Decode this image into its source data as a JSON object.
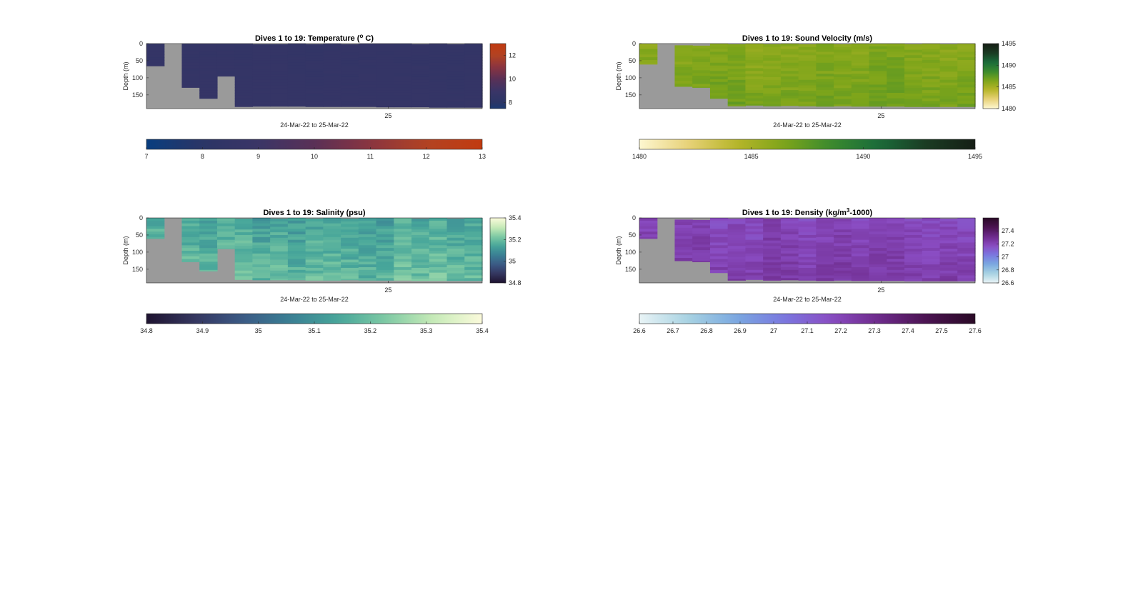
{
  "chart_data": [
    {
      "type": "heatmap",
      "title": "Dives 1 to 19: Temperature (",
      "title_sup": "o",
      "title_tail": " C)",
      "xlabel": "24-Mar-22 to 25-Mar-22",
      "ylabel": "Depth (m)",
      "xtick_labels": [
        "25"
      ],
      "ylim": [
        0,
        190
      ],
      "yticks": [
        0,
        50,
        100,
        150
      ],
      "dives": 19,
      "dive_max_depth": [
        65,
        0,
        128,
        160,
        95,
        184,
        183,
        183,
        183,
        184,
        184,
        184,
        184,
        185,
        185,
        185,
        186,
        186,
        186
      ],
      "dive_first_depth": [
        0,
        0,
        0,
        0,
        0,
        0,
        2,
        2,
        0,
        2,
        0,
        2,
        0,
        0,
        0,
        2,
        0,
        2,
        0
      ],
      "color_range": [
        7,
        13
      ],
      "base_value": 8.6,
      "noise": 0.05,
      "no_data_color": "#9a9a9a",
      "colormap": [
        "#083d7f",
        "#2b3565",
        "#3a3567",
        "#5a3056",
        "#8a3440",
        "#b24322",
        "#c13a10"
      ],
      "colorbar_right": {
        "ticks": [
          8,
          10,
          12
        ],
        "range": [
          7.5,
          13
        ]
      },
      "colorbar_bottom": {
        "ticks": [
          7,
          8,
          9,
          10,
          11,
          12,
          13
        ]
      }
    },
    {
      "type": "heatmap",
      "title": "Dives 1 to 19: Sound Velocity (m/s)",
      "xlabel": "24-Mar-22 to 25-Mar-22",
      "ylabel": "Depth (m)",
      "xtick_labels": [
        "25"
      ],
      "ylim": [
        0,
        190
      ],
      "yticks": [
        0,
        50,
        100,
        150
      ],
      "dives": 19,
      "dive_max_depth": [
        60,
        0,
        125,
        128,
        160,
        182,
        180,
        182,
        181,
        182,
        183,
        182,
        183,
        183,
        183,
        184,
        184,
        184,
        184
      ],
      "dive_first_depth": [
        0,
        0,
        5,
        6,
        0,
        2,
        0,
        2,
        0,
        2,
        0,
        2,
        0,
        0,
        0,
        2,
        0,
        2,
        0
      ],
      "color_range": [
        1480,
        1495
      ],
      "base_value": 1486.5,
      "noise": 0.5,
      "no_data_color": "#9a9a9a",
      "colormap": [
        "#fdf7d0",
        "#e8d27a",
        "#b8b62a",
        "#7ea51a",
        "#3a8a2e",
        "#1a6b3a",
        "#1a3a22",
        "#161e16"
      ],
      "colorbar_right": {
        "ticks": [
          1480,
          1485,
          1490,
          1495
        ],
        "range": [
          1480,
          1495
        ]
      },
      "colorbar_bottom": {
        "ticks": [
          1480,
          1485,
          1490,
          1495
        ]
      }
    },
    {
      "type": "heatmap",
      "title": "Dives 1 to 19: Salinity (psu)",
      "xlabel": "24-Mar-22 to 25-Mar-22",
      "ylabel": "Depth (m)",
      "xtick_labels": [
        "25"
      ],
      "ylim": [
        0,
        190
      ],
      "yticks": [
        0,
        50,
        100,
        150
      ],
      "dives": 19,
      "dive_max_depth": [
        60,
        0,
        128,
        155,
        90,
        180,
        181,
        181,
        181,
        182,
        182,
        181,
        182,
        182,
        182,
        183,
        183,
        183,
        183
      ],
      "dive_first_depth": [
        0,
        0,
        0,
        0,
        0,
        2,
        0,
        2,
        0,
        2,
        0,
        2,
        0,
        0,
        0,
        2,
        0,
        2,
        0
      ],
      "color_range": [
        34.8,
        35.4
      ],
      "base_value": 35.17,
      "noise": 0.04,
      "no_data_color": "#9a9a9a",
      "colormap": [
        "#1e1330",
        "#35365f",
        "#3b5a86",
        "#3a7f94",
        "#47a69a",
        "#7fcaa4",
        "#c8ebb8",
        "#fbfadb"
      ],
      "colorbar_right": {
        "ticks": [
          34.8,
          35,
          35.2,
          35.4
        ],
        "range": [
          34.8,
          35.4
        ]
      },
      "colorbar_bottom": {
        "ticks": [
          34.8,
          34.9,
          35,
          35.1,
          35.2,
          35.3,
          35.4
        ]
      }
    },
    {
      "type": "heatmap",
      "title": "Dives 1 to 19: Density (kg/m",
      "title_sup": "3",
      "title_tail": "-1000)",
      "xlabel": "24-Mar-22 to 25-Mar-22",
      "ylabel": "Depth (m)",
      "xtick_labels": [
        "25"
      ],
      "ylim": [
        0,
        190
      ],
      "yticks": [
        0,
        50,
        100,
        150
      ],
      "dives": 19,
      "dive_max_depth": [
        60,
        0,
        125,
        128,
        160,
        182,
        180,
        182,
        181,
        182,
        183,
        182,
        183,
        183,
        183,
        184,
        184,
        184,
        184
      ],
      "dive_first_depth": [
        0,
        0,
        5,
        6,
        0,
        2,
        0,
        2,
        0,
        2,
        0,
        2,
        0,
        0,
        0,
        2,
        0,
        2,
        0
      ],
      "color_range": [
        26.6,
        27.6
      ],
      "base_value": 27.22,
      "noise": 0.04,
      "no_data_color": "#9a9a9a",
      "colormap": [
        "#e9f4f6",
        "#a8d3e2",
        "#7aa9e0",
        "#7a78e0",
        "#8a4cc2",
        "#6d2a8a",
        "#4a1350",
        "#2a0a26"
      ],
      "colorbar_right": {
        "ticks": [
          26.6,
          26.8,
          27,
          27.2,
          27.4
        ],
        "range": [
          26.6,
          27.6
        ]
      },
      "colorbar_bottom": {
        "ticks": [
          26.6,
          26.7,
          26.8,
          26.9,
          27,
          27.1,
          27.2,
          27.3,
          27.4,
          27.5,
          27.6
        ]
      }
    }
  ]
}
